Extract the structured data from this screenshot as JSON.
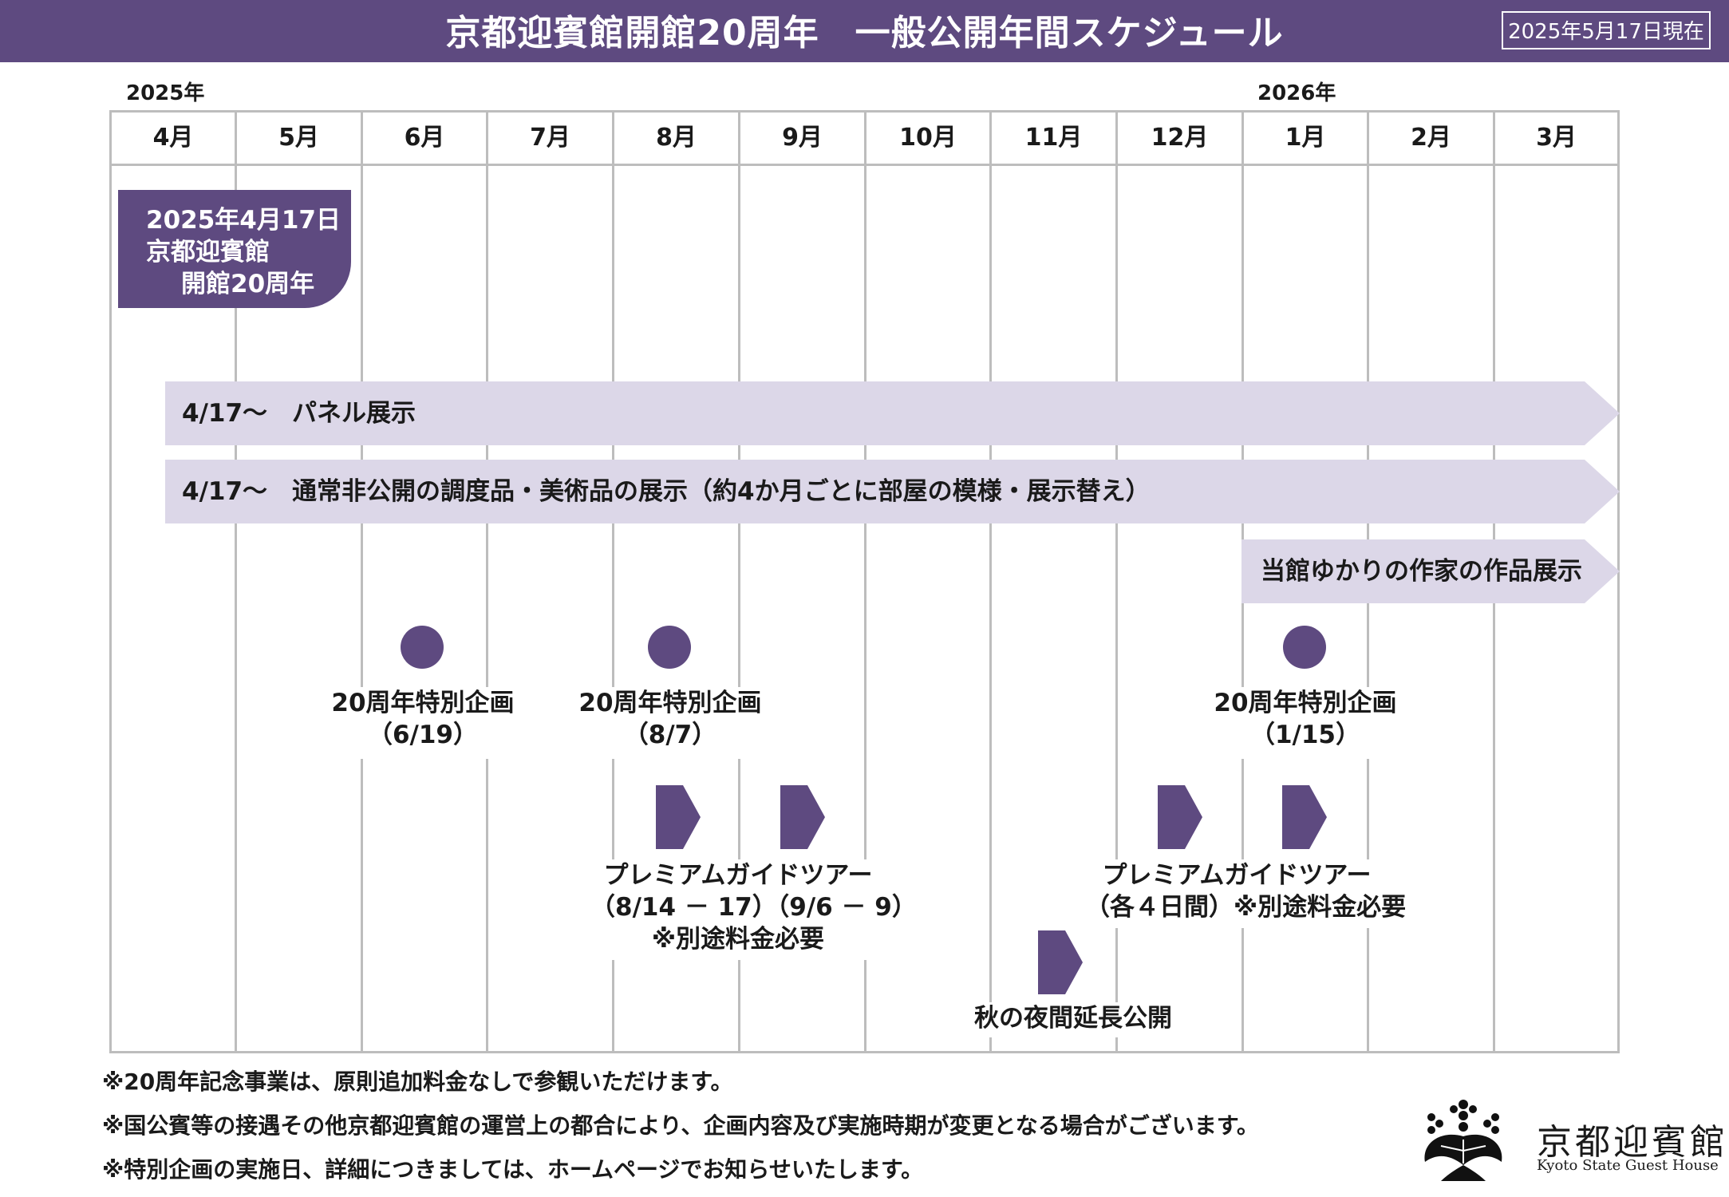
{
  "header": {
    "title": "京都迎賓館開館20周年　一般公開年間スケジュール",
    "as_of": "2025年5月17日現在"
  },
  "timeline": {
    "year_start": "2025年",
    "year_next": "2026年",
    "months": [
      "4月",
      "5月",
      "6月",
      "7月",
      "8月",
      "9月",
      "10月",
      "11月",
      "12月",
      "1月",
      "2月",
      "3月"
    ]
  },
  "anniversary": {
    "line1": "2025年4月17日",
    "line2": "京都迎賓館",
    "line3": "開館20周年"
  },
  "bands": {
    "panel": "4/17～　パネル展示",
    "furnishings": "4/17～　通常非公開の調度品・美術品の展示（約4か月ごとに部屋の模様・展示替え）",
    "artists": "当館ゆかりの作家の作品展示"
  },
  "events": {
    "special_june": {
      "title": "20周年特別企画",
      "date": "（6/19）"
    },
    "special_aug": {
      "title": "20周年特別企画",
      "date": "（8/7）"
    },
    "special_jan": {
      "title": "20周年特別企画",
      "date": "（1/15）"
    },
    "guide_summer": {
      "title": "プレミアムガイドツアー",
      "dates": "（8/14 － 17）（9/6 － 9）",
      "fee": "※別途料金必要"
    },
    "guide_winter": {
      "title": "プレミアムガイドツアー",
      "detail": "（各４日間）※別途料金必要"
    },
    "night_opening": "秋の夜間延長公開"
  },
  "notes": [
    "※20周年記念事業は、原則追加料金なしで参観いただけます。",
    "※国公賓等の接遇その他京都迎賓館の運営上の都合により、企画内容及び実施時期が変更となる場合がございます。",
    "※特別企画の実施日、詳細につきましては、ホームページでお知らせいたします。"
  ],
  "logo": {
    "name": "京都迎賓館",
    "subtitle": "Kyoto State Guest House"
  },
  "colors": {
    "accent": "#5e4a80",
    "band": "#dcd7e8",
    "grid": "#bdbdbd"
  }
}
